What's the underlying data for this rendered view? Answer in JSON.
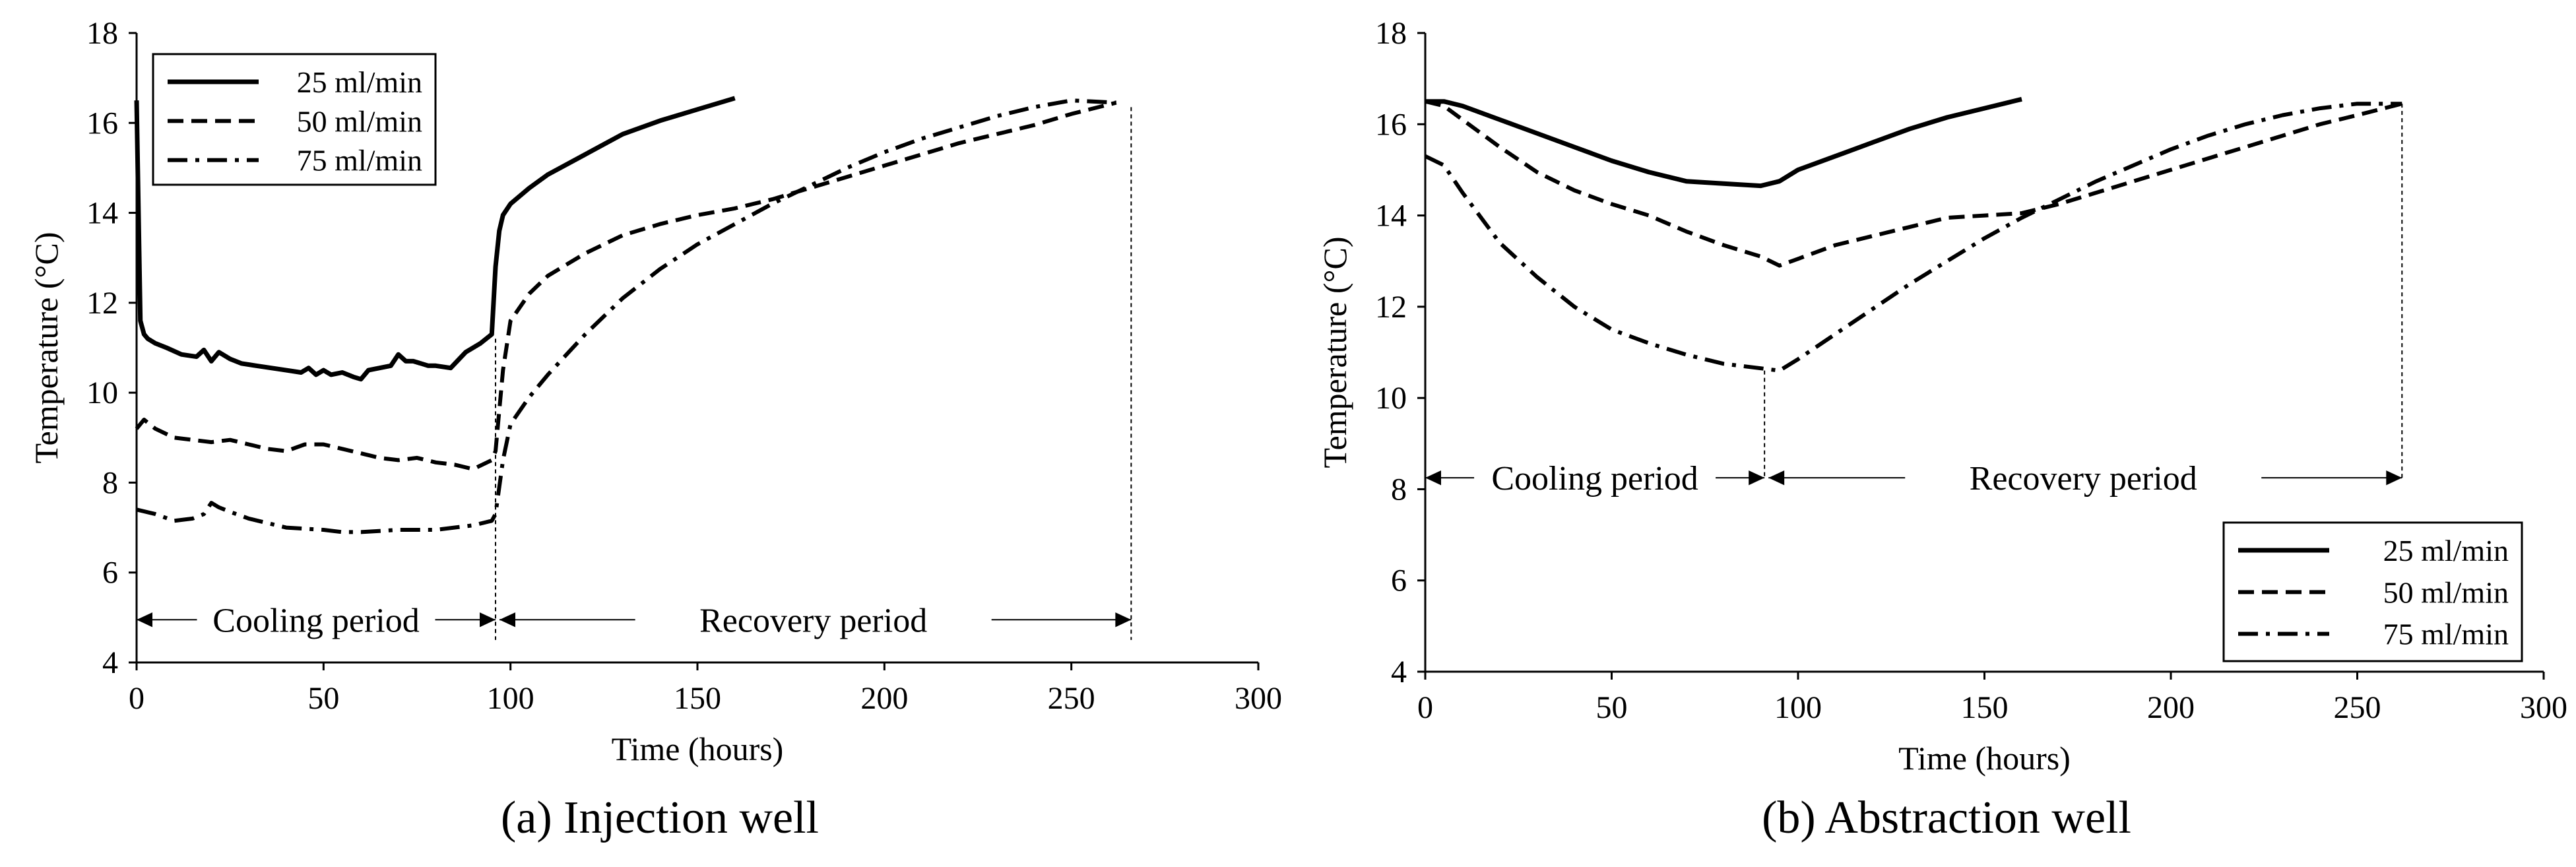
{
  "chart_data": [
    {
      "type": "line",
      "caption": "(a) Injection well",
      "xlabel": "Time (hours)",
      "ylabel": "Temperature (°C)",
      "xlim": [
        0,
        300
      ],
      "ylim": [
        4,
        18
      ],
      "xticks": [
        "0",
        "50",
        "100",
        "150",
        "200",
        "250",
        "300"
      ],
      "yticks": [
        "4",
        "6",
        "8",
        "10",
        "12",
        "14",
        "16",
        "18"
      ],
      "legend_position": "top-left",
      "annotations": {
        "cooling": "Cooling period",
        "recovery": "Recovery period"
      },
      "period_markers": [
        96,
        266
      ],
      "series": [
        {
          "name": "25 ml/min",
          "dash": "solid",
          "x": [
            0,
            1,
            2,
            3,
            5,
            8,
            12,
            16,
            18,
            20,
            22,
            25,
            28,
            32,
            36,
            40,
            44,
            46,
            48,
            50,
            52,
            55,
            58,
            60,
            62,
            65,
            68,
            70,
            72,
            74,
            76,
            78,
            80,
            84,
            88,
            92,
            95,
            96,
            97,
            98,
            100,
            105,
            110,
            120,
            130,
            140,
            150,
            160
          ],
          "y": [
            16.5,
            11.6,
            11.3,
            11.2,
            11.1,
            11.0,
            10.85,
            10.8,
            10.95,
            10.7,
            10.9,
            10.75,
            10.65,
            10.6,
            10.55,
            10.5,
            10.45,
            10.55,
            10.4,
            10.5,
            10.4,
            10.45,
            10.35,
            10.3,
            10.5,
            10.55,
            10.6,
            10.85,
            10.7,
            10.7,
            10.65,
            10.6,
            10.6,
            10.55,
            10.9,
            11.1,
            11.3,
            12.8,
            13.6,
            13.95,
            14.2,
            14.55,
            14.85,
            15.3,
            15.75,
            16.05,
            16.3,
            16.55
          ]
        },
        {
          "name": "50 ml/min",
          "dash": "dashed",
          "x": [
            0,
            2,
            5,
            10,
            15,
            20,
            25,
            30,
            35,
            40,
            45,
            50,
            55,
            60,
            65,
            70,
            75,
            80,
            85,
            90,
            95,
            96,
            98,
            100,
            105,
            110,
            120,
            130,
            140,
            150,
            160,
            170,
            180,
            190,
            200,
            210,
            220,
            230,
            240,
            250,
            262
          ],
          "y": [
            9.2,
            9.4,
            9.2,
            9.0,
            8.95,
            8.9,
            8.95,
            8.85,
            8.75,
            8.7,
            8.85,
            8.85,
            8.75,
            8.65,
            8.55,
            8.5,
            8.55,
            8.45,
            8.4,
            8.3,
            8.5,
            8.7,
            10.5,
            11.6,
            12.2,
            12.6,
            13.1,
            13.5,
            13.75,
            13.95,
            14.1,
            14.3,
            14.55,
            14.8,
            15.05,
            15.3,
            15.55,
            15.75,
            15.95,
            16.2,
            16.45
          ]
        },
        {
          "name": "75 ml/min",
          "dash": "dashdot",
          "x": [
            0,
            5,
            10,
            15,
            18,
            20,
            22,
            25,
            30,
            40,
            50,
            55,
            60,
            70,
            80,
            90,
            95,
            96,
            98,
            100,
            105,
            110,
            120,
            130,
            140,
            150,
            160,
            170,
            180,
            190,
            200,
            210,
            220,
            230,
            240,
            250,
            262
          ],
          "y": [
            7.4,
            7.3,
            7.15,
            7.2,
            7.3,
            7.55,
            7.45,
            7.35,
            7.2,
            7.0,
            6.95,
            6.9,
            6.9,
            6.95,
            6.95,
            7.05,
            7.15,
            7.3,
            8.5,
            9.3,
            9.9,
            10.4,
            11.3,
            12.1,
            12.75,
            13.3,
            13.75,
            14.2,
            14.6,
            15.0,
            15.35,
            15.65,
            15.9,
            16.15,
            16.35,
            16.5,
            16.45
          ]
        }
      ]
    },
    {
      "type": "line",
      "caption": "(b) Abstraction well",
      "xlabel": "Time (hours)",
      "ylabel": "Temperature (°C)",
      "xlim": [
        0,
        300
      ],
      "ylim": [
        4,
        18
      ],
      "xticks": [
        "0",
        "50",
        "100",
        "150",
        "200",
        "250",
        "300"
      ],
      "yticks": [
        "4",
        "6",
        "8",
        "10",
        "12",
        "14",
        "16",
        "18"
      ],
      "legend_position": "bottom-right",
      "annotations": {
        "cooling": "Cooling period",
        "recovery": "Recovery period"
      },
      "period_markers": [
        91,
        262
      ],
      "series": [
        {
          "name": "25 ml/min",
          "dash": "solid",
          "x": [
            0,
            5,
            10,
            20,
            30,
            40,
            50,
            60,
            70,
            80,
            90,
            95,
            100,
            110,
            120,
            130,
            140,
            150,
            160
          ],
          "y": [
            16.5,
            16.5,
            16.4,
            16.1,
            15.8,
            15.5,
            15.2,
            14.95,
            14.75,
            14.7,
            14.65,
            14.75,
            15.0,
            15.3,
            15.6,
            15.9,
            16.15,
            16.35,
            16.55
          ]
        },
        {
          "name": "50 ml/min",
          "dash": "dashed",
          "x": [
            0,
            5,
            10,
            20,
            30,
            40,
            50,
            60,
            70,
            80,
            90,
            95,
            100,
            110,
            120,
            130,
            140,
            150,
            160,
            170,
            180,
            190,
            200,
            210,
            220,
            230,
            240,
            250,
            262
          ],
          "y": [
            16.5,
            16.4,
            16.1,
            15.5,
            14.95,
            14.55,
            14.25,
            14.0,
            13.65,
            13.35,
            13.1,
            12.9,
            13.05,
            13.35,
            13.55,
            13.75,
            13.95,
            14.0,
            14.05,
            14.25,
            14.5,
            14.75,
            15.0,
            15.25,
            15.5,
            15.75,
            16.0,
            16.2,
            16.45
          ]
        },
        {
          "name": "75 ml/min",
          "dash": "dashdot",
          "x": [
            0,
            5,
            10,
            20,
            30,
            40,
            50,
            60,
            70,
            80,
            90,
            95,
            100,
            110,
            120,
            130,
            140,
            150,
            160,
            170,
            180,
            190,
            200,
            210,
            220,
            230,
            240,
            250,
            262
          ],
          "y": [
            15.3,
            15.1,
            14.5,
            13.4,
            12.65,
            12.0,
            11.5,
            11.2,
            10.95,
            10.75,
            10.65,
            10.6,
            10.85,
            11.4,
            11.95,
            12.5,
            13.0,
            13.5,
            13.95,
            14.35,
            14.75,
            15.1,
            15.45,
            15.75,
            16.0,
            16.2,
            16.35,
            16.45,
            16.45
          ]
        }
      ]
    }
  ]
}
